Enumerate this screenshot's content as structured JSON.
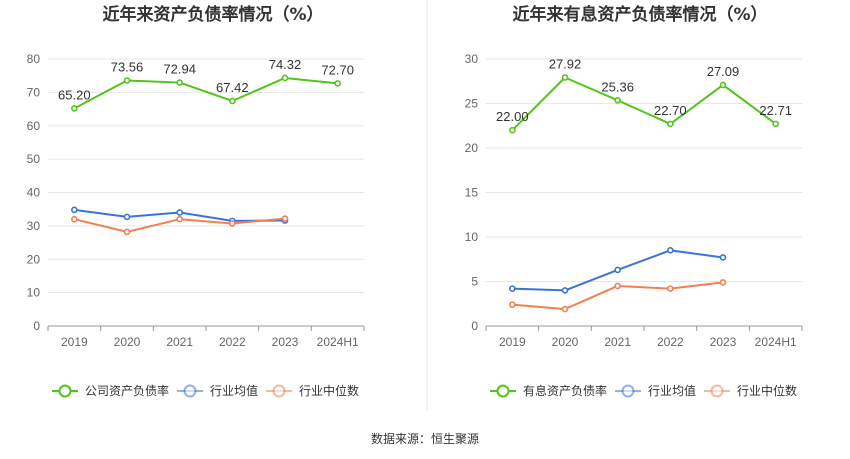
{
  "source_label": "数据来源：恒生聚源",
  "chart_data": [
    {
      "type": "line",
      "title": "近年来资产负债率情况（%）",
      "categories": [
        "2019",
        "2020",
        "2021",
        "2022",
        "2023",
        "2024H1"
      ],
      "ylim": [
        0,
        80
      ],
      "yticks": [
        0,
        10,
        20,
        30,
        40,
        50,
        60,
        70,
        80
      ],
      "grid": true,
      "legend_position": "bottom",
      "series": [
        {
          "name": "公司资产负债率",
          "color": "#52c41a",
          "values": [
            65.2,
            73.56,
            72.94,
            67.42,
            74.32,
            72.7
          ],
          "labels": [
            "65.20",
            "73.56",
            "72.94",
            "67.42",
            "74.32",
            "72.70"
          ]
        },
        {
          "name": "行业均值",
          "color": "#3b73d9",
          "values": [
            34.8,
            32.7,
            34.0,
            31.5,
            31.6,
            null
          ]
        },
        {
          "name": "行业中位数",
          "color": "#f08156",
          "values": [
            32.0,
            28.2,
            32.0,
            30.7,
            32.2,
            null
          ]
        }
      ]
    },
    {
      "type": "line",
      "title": "近年来有息资产负债率情况（%）",
      "categories": [
        "2019",
        "2020",
        "2021",
        "2022",
        "2023",
        "2024H1"
      ],
      "ylim": [
        0,
        30
      ],
      "yticks": [
        0,
        5,
        10,
        15,
        20,
        25,
        30
      ],
      "grid": true,
      "legend_position": "bottom",
      "series": [
        {
          "name": "有息资产负债率",
          "color": "#52c41a",
          "values": [
            22.0,
            27.92,
            25.36,
            22.7,
            27.09,
            22.71
          ],
          "labels": [
            "22.00",
            "27.92",
            "25.36",
            "22.70",
            "27.09",
            "22.71"
          ]
        },
        {
          "name": "行业均值",
          "color": "#3b73d9",
          "values": [
            4.2,
            4.0,
            6.3,
            8.5,
            7.7,
            null
          ]
        },
        {
          "name": "行业中位数",
          "color": "#f08156",
          "values": [
            2.4,
            1.9,
            4.5,
            4.2,
            4.9,
            null
          ]
        }
      ]
    }
  ]
}
